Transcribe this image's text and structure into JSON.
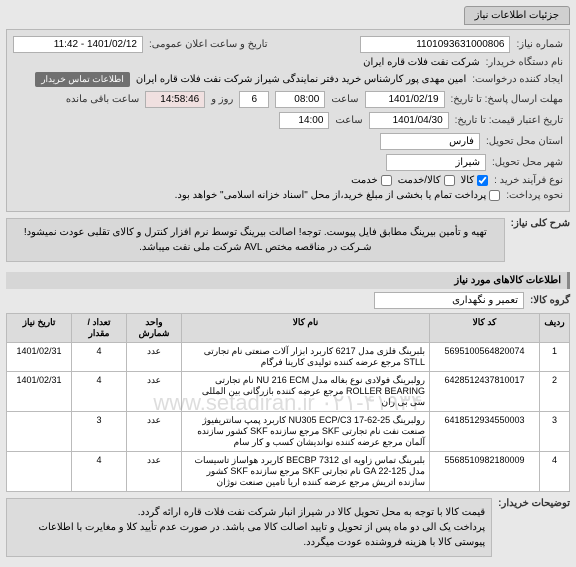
{
  "tab": "جزئیات اطلاعات نیاز",
  "fields": {
    "need_number_lbl": "شماره نیاز:",
    "need_number": "1101093631000806",
    "announce_lbl": "تاریخ و ساعت اعلان عمومی:",
    "announce": "1401/02/12 - 11:42",
    "buyer_org_lbl": "نام دستگاه خریدار:",
    "buyer_org": "شرکت نفت فلات قاره ایران",
    "requester_lbl": "ایجاد کننده درخواست:",
    "requester": "امین مهدی پور کارشناس خرید دفتر نمایندگی شیراز شرکت نفت فلات قاره ایران",
    "requester_badge": "اطلاعات تماس خریدار",
    "deadline_lbl": "مهلت ارسال پاسخ: تا تاریخ:",
    "deadline_date": "1401/02/19",
    "time_lbl": "ساعت",
    "deadline_time": "08:00",
    "days_remain": "6",
    "days_and": "روز و",
    "time_remain": "14:58:46",
    "remain_suffix": "ساعت باقی مانده",
    "validity_lbl": "تاریخ اعتبار قیمت: تا تاریخ:",
    "validity_date": "1401/04/30",
    "validity_time": "14:00",
    "province_lbl": "استان محل تحویل:",
    "province": "فارس",
    "city_lbl": "شهر محل تحویل:",
    "city": "شیراز",
    "buy_type_lbl": "نوع فرآیند خرید :",
    "opt_goods": "کالا",
    "opt_service": "کالا/خدمت",
    "opt_svc": "خدمت",
    "payment_lbl": "نحوه پرداخت:",
    "payment_text": "پرداخت تمام یا بخشی از مبلغ خرید،از محل \"اسناد خزانه اسلامی\" خواهد بود."
  },
  "need_title_lbl": "شرح کلی نیاز:",
  "need_title": "تهیه و تأمین بیرینگ مطابق فایل پیوست. توجه! اصالت بیرینگ توسط نرم افزار کنترل و کالای تقلبی عودت نمیشود! شـرکت در مناقصه مختص AVL شرکت ملی نفت میباشد.",
  "items_header": "اطلاعات کالاهای مورد نیاز",
  "group_lbl": "گروه کالا:",
  "group_val": "تعمیر و نگهداری",
  "columns": {
    "row": "ردیف",
    "code": "کد کالا",
    "name": "نام کالا",
    "unit": "واحد شمارش",
    "qty": "تعداد / مقدار",
    "date": "تاریخ نیاز"
  },
  "items": [
    {
      "row": "1",
      "code": "5695100564820074",
      "name": "بلبرینگ فلزی مدل 6217 کاربرد ابزار آلات صنعتی نام تجارتی STLL مرجع عرضه کننده تولیدی کارینا فرگام",
      "unit": "عدد",
      "qty": "4",
      "date": "1401/02/31"
    },
    {
      "row": "2",
      "code": "6428512437810017",
      "name": "رولبرینگ فولادی نوع بغاله مدل NU 216 ECM نام تجارتی ROLLER BEARING مرجع عرضه کننده بازرگانی بین المللی سی بی ران",
      "unit": "عدد",
      "qty": "4",
      "date": "1401/02/31"
    },
    {
      "row": "3",
      "code": "6418512934550003",
      "name": "رولبرینگ NU305 ECP/C3 17-62-25 کاربرد پمپ سانتریفیوژ صنعت نفت نام تجارتی SKF مرجع سازنده SKF کشور سازنده آلمان مرجع عرضه کننده نواندیشان کسب و کار سام",
      "unit": "عدد",
      "qty": "3",
      "date": ""
    },
    {
      "row": "4",
      "code": "5568510982180009",
      "name": "بلبرینگ تماس زاویه ای BECBP 7312 کاربرد هواساز تاسیسات مدل GA 22-125 نام تجارتی SKF مرجع سازنده SKF کشور سازنده اتریش مرجع عرضه کننده اریا تامین صنعت نوژان",
      "unit": "عدد",
      "qty": "4",
      "date": ""
    }
  ],
  "watermark": "www.setadiran.ir   ۰۲۱-۴۱۹۳۴",
  "notes_lbl": "توضیحات خریدار:",
  "notes": "قیمت کالا با توجه به محل تحویل کالا در شیراز انبار شرکت نفت فلات قاره ارائه گردد.\nپرداخت یک الی دو ماه پس از تحویل و تایید اصالت کالا می باشد. در صورت عدم تأیید کلا و مغایرت با اطلاعات پیوستی کالا با هزینه فروشنده عودت میگردد."
}
